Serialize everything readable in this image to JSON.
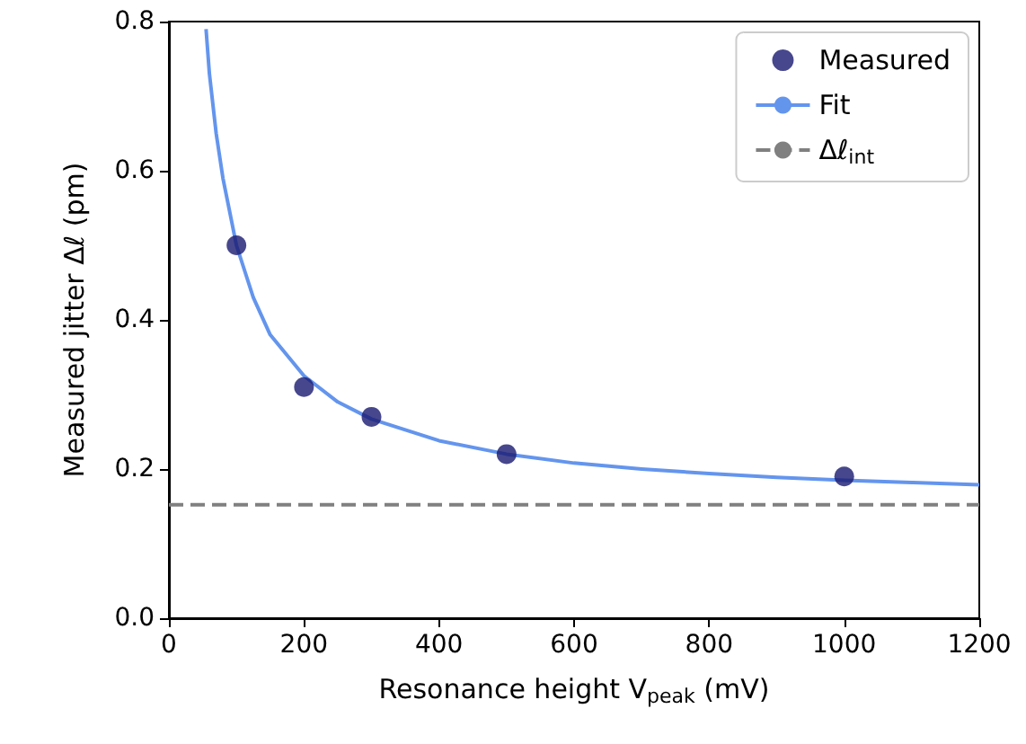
{
  "chart_data": {
    "type": "scatter",
    "xlabel": "Resonance height V$_{peak}$ (mV)",
    "ylabel": "Measured jitter Δℓ (pm)",
    "xlim": [
      0,
      1200
    ],
    "xticks": [
      0,
      200,
      400,
      600,
      800,
      1000,
      1200
    ],
    "ylim": [
      0,
      0.8
    ],
    "yticks": [
      {
        "value": 0,
        "label": "0.0"
      },
      0.2,
      0.4,
      0.6,
      0.8
    ],
    "series": [
      {
        "name": "Measured",
        "color": "#191970",
        "marker": "circle",
        "x": [
          100,
          200,
          300,
          500,
          1000
        ],
        "values": [
          0.5,
          0.31,
          0.27,
          0.22,
          0.19
        ]
      },
      {
        "name": "Fit",
        "type": "line",
        "color": "#6495ed",
        "marker": "none",
        "line_style": "solid",
        "x": [
          55,
          60,
          70,
          80,
          100,
          125,
          150,
          200,
          250,
          300,
          400,
          500,
          600,
          700,
          800,
          900,
          1000,
          1100,
          1200
        ],
        "values": [
          0.79,
          0.73,
          0.65,
          0.59,
          0.5,
          0.43,
          0.38,
          0.325,
          0.29,
          0.267,
          0.238,
          0.22,
          0.208,
          0.2,
          0.194,
          0.189,
          0.185,
          0.182,
          0.179
        ]
      }
    ],
    "ref_lines": [
      {
        "axis": "y",
        "value": 0.152,
        "label": "Δℓ$_{int}$",
        "color": "#808080",
        "line_style": "dashed"
      }
    ],
    "grid": false,
    "legend": "top right"
  }
}
